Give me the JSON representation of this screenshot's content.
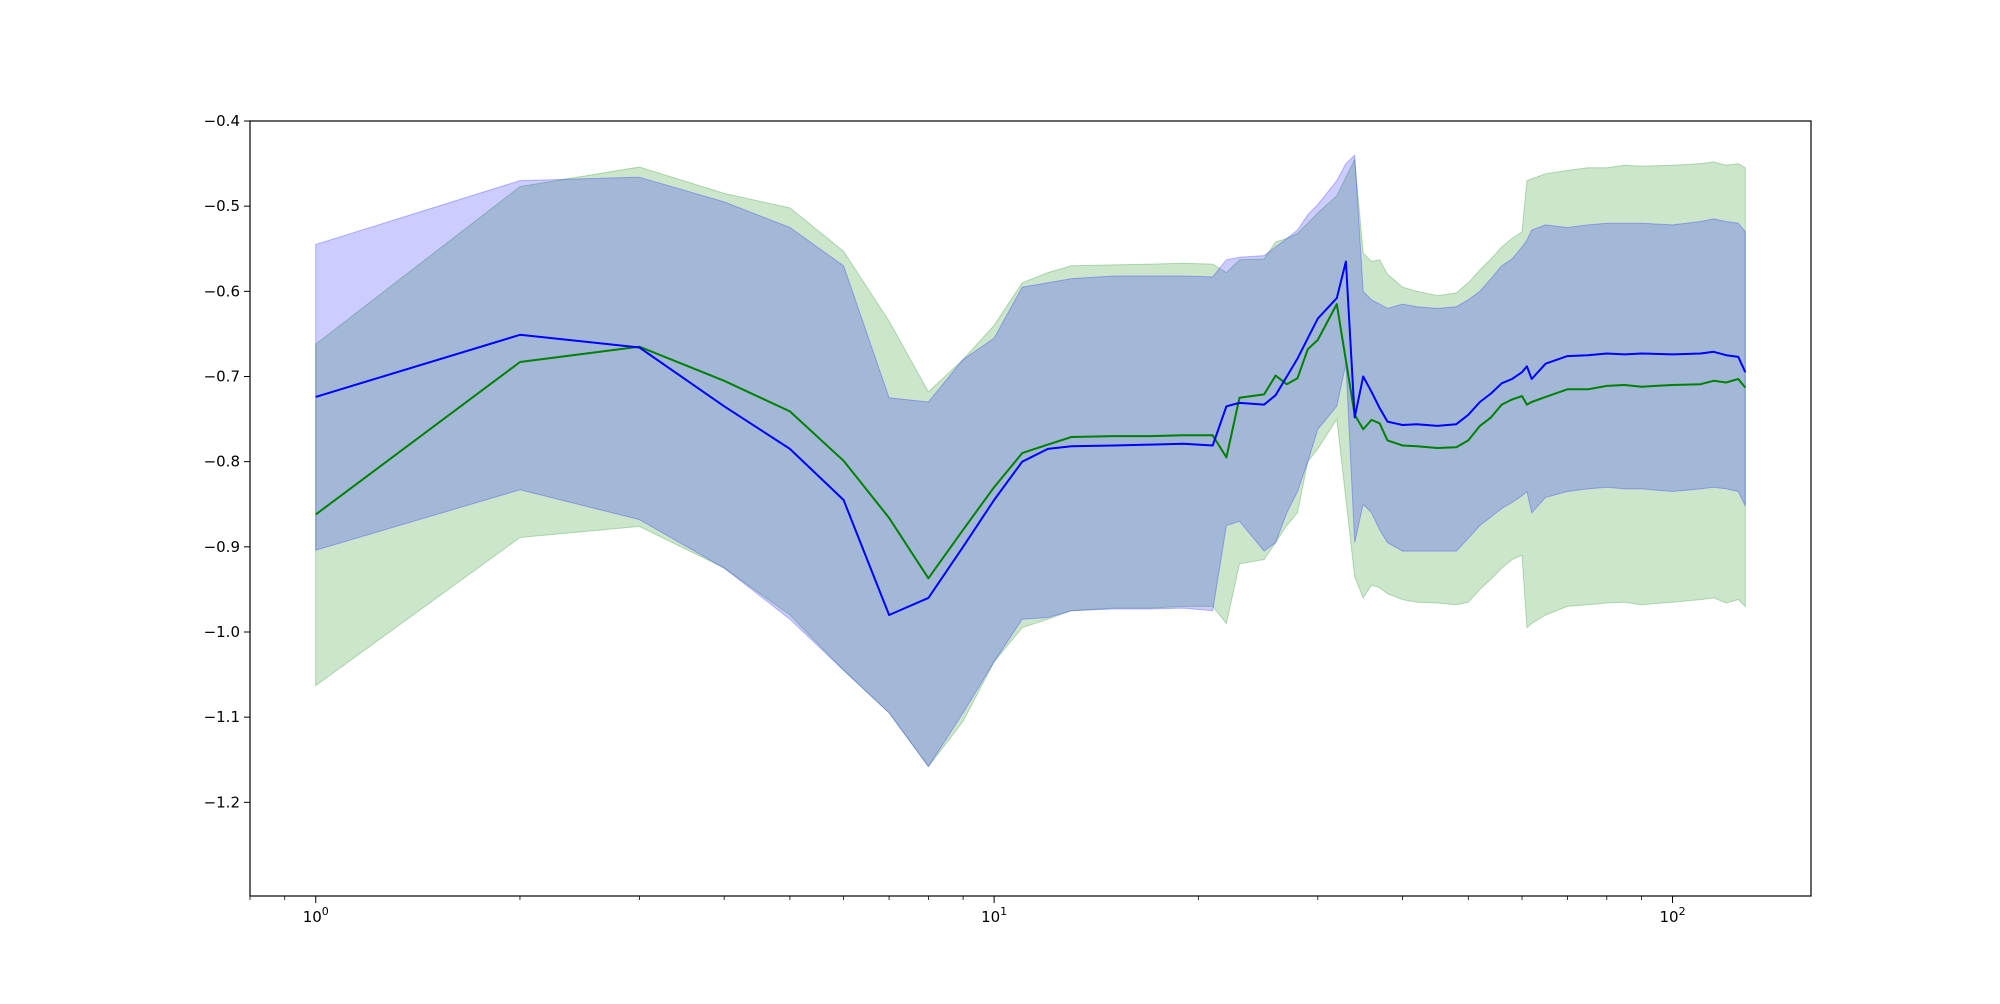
{
  "chart_data": {
    "type": "line",
    "title": "",
    "xlabel": "",
    "ylabel": "",
    "xscale": "log",
    "xlim": [
      0.8,
      160
    ],
    "ylim": [
      -1.31,
      -0.4
    ],
    "grid": false,
    "legend": "none",
    "yticks": [
      {
        "value": -0.4,
        "label": "−0.4"
      },
      {
        "value": -0.5,
        "label": "−0.5"
      },
      {
        "value": -0.6,
        "label": "−0.6"
      },
      {
        "value": -0.7,
        "label": "−0.7"
      },
      {
        "value": -0.8,
        "label": "−0.8"
      },
      {
        "value": -0.9,
        "label": "−0.9"
      },
      {
        "value": -1.0,
        "label": "−1.0"
      },
      {
        "value": -1.1,
        "label": "−1.1"
      },
      {
        "value": -1.2,
        "label": "−1.2"
      }
    ],
    "xticks": [
      {
        "value": 1,
        "base": "10",
        "exp": "0"
      },
      {
        "value": 10,
        "base": "10",
        "exp": "1"
      },
      {
        "value": 100,
        "base": "10",
        "exp": "2"
      }
    ],
    "series": [
      {
        "color": "#008000",
        "band_color": "#008000",
        "band_opacity": 0.2,
        "x": [
          1,
          2,
          3,
          4,
          5,
          6,
          7,
          8,
          9,
          10,
          11,
          12,
          13,
          15,
          17,
          19,
          21,
          22,
          23,
          25,
          26,
          27,
          28,
          29,
          30,
          32,
          34,
          35,
          36,
          37,
          38,
          40,
          42,
          45,
          48,
          50,
          52,
          54,
          56,
          58,
          60,
          61,
          62,
          65,
          70,
          75,
          80,
          85,
          90,
          100,
          110,
          115,
          120,
          125,
          128
        ],
        "mean": [
          -0.862,
          -0.683,
          -0.665,
          -0.705,
          -0.741,
          -0.799,
          -0.866,
          -0.937,
          -0.88,
          -0.83,
          -0.79,
          -0.78,
          -0.771,
          -0.77,
          -0.77,
          -0.769,
          -0.769,
          -0.795,
          -0.725,
          -0.721,
          -0.699,
          -0.709,
          -0.702,
          -0.668,
          -0.657,
          -0.615,
          -0.745,
          -0.762,
          -0.751,
          -0.755,
          -0.775,
          -0.781,
          -0.782,
          -0.784,
          -0.783,
          -0.775,
          -0.758,
          -0.748,
          -0.733,
          -0.727,
          -0.723,
          -0.733,
          -0.73,
          -0.724,
          -0.715,
          -0.715,
          -0.711,
          -0.71,
          -0.712,
          -0.71,
          -0.709,
          -0.705,
          -0.707,
          -0.703,
          -0.713
        ],
        "lower": [
          -1.063,
          -0.889,
          -0.876,
          -0.925,
          -0.98,
          -1.045,
          -1.095,
          -1.158,
          -1.105,
          -1.035,
          -0.995,
          -0.985,
          -0.975,
          -0.972,
          -0.972,
          -0.97,
          -0.97,
          -0.99,
          -0.92,
          -0.915,
          -0.895,
          -0.875,
          -0.86,
          -0.8,
          -0.785,
          -0.75,
          -0.935,
          -0.96,
          -0.945,
          -0.948,
          -0.955,
          -0.962,
          -0.965,
          -0.966,
          -0.968,
          -0.965,
          -0.95,
          -0.938,
          -0.925,
          -0.915,
          -0.91,
          -0.995,
          -0.99,
          -0.98,
          -0.97,
          -0.968,
          -0.966,
          -0.965,
          -0.968,
          -0.965,
          -0.962,
          -0.96,
          -0.966,
          -0.962,
          -0.97
        ],
        "upper": [
          -0.662,
          -0.477,
          -0.454,
          -0.485,
          -0.502,
          -0.553,
          -0.635,
          -0.718,
          -0.68,
          -0.64,
          -0.59,
          -0.578,
          -0.57,
          -0.569,
          -0.568,
          -0.567,
          -0.568,
          -0.578,
          -0.563,
          -0.562,
          -0.542,
          -0.538,
          -0.532,
          -0.52,
          -0.508,
          -0.488,
          -0.445,
          -0.555,
          -0.565,
          -0.563,
          -0.58,
          -0.595,
          -0.6,
          -0.605,
          -0.602,
          -0.59,
          -0.575,
          -0.562,
          -0.548,
          -0.538,
          -0.53,
          -0.47,
          -0.468,
          -0.462,
          -0.458,
          -0.455,
          -0.455,
          -0.452,
          -0.453,
          -0.452,
          -0.45,
          -0.448,
          -0.452,
          -0.45,
          -0.455
        ]
      },
      {
        "color": "#0000ff",
        "band_color": "#0000ff",
        "band_opacity": 0.2,
        "x": [
          1,
          2,
          3,
          4,
          5,
          6,
          7,
          8,
          9,
          10,
          11,
          12,
          13,
          15,
          17,
          19,
          21,
          22,
          23,
          25,
          26,
          27,
          28,
          29,
          30,
          32,
          33,
          34,
          35,
          36,
          37,
          38,
          40,
          42,
          45,
          48,
          50,
          52,
          54,
          56,
          58,
          60,
          61,
          62,
          65,
          70,
          75,
          80,
          85,
          90,
          100,
          110,
          115,
          120,
          125,
          128
        ],
        "mean": [
          -0.724,
          -0.651,
          -0.666,
          -0.735,
          -0.785,
          -0.845,
          -0.98,
          -0.96,
          -0.9,
          -0.845,
          -0.8,
          -0.785,
          -0.782,
          -0.781,
          -0.78,
          -0.779,
          -0.781,
          -0.735,
          -0.731,
          -0.733,
          -0.722,
          -0.7,
          -0.679,
          -0.655,
          -0.632,
          -0.608,
          -0.565,
          -0.748,
          -0.7,
          -0.718,
          -0.737,
          -0.753,
          -0.757,
          -0.756,
          -0.758,
          -0.756,
          -0.745,
          -0.73,
          -0.72,
          -0.708,
          -0.703,
          -0.695,
          -0.688,
          -0.703,
          -0.685,
          -0.676,
          -0.675,
          -0.673,
          -0.674,
          -0.673,
          -0.674,
          -0.673,
          -0.671,
          -0.675,
          -0.677,
          -0.695
        ],
        "lower": [
          -0.904,
          -0.833,
          -0.868,
          -0.925,
          -0.985,
          -1.045,
          -1.095,
          -1.158,
          -1.095,
          -1.035,
          -0.985,
          -0.983,
          -0.975,
          -0.973,
          -0.973,
          -0.972,
          -0.975,
          -0.875,
          -0.87,
          -0.905,
          -0.895,
          -0.86,
          -0.835,
          -0.8,
          -0.762,
          -0.735,
          -0.685,
          -0.895,
          -0.85,
          -0.86,
          -0.88,
          -0.895,
          -0.905,
          -0.905,
          -0.905,
          -0.905,
          -0.89,
          -0.875,
          -0.865,
          -0.855,
          -0.848,
          -0.84,
          -0.835,
          -0.86,
          -0.842,
          -0.835,
          -0.832,
          -0.83,
          -0.832,
          -0.832,
          -0.835,
          -0.832,
          -0.83,
          -0.832,
          -0.835,
          -0.852
        ],
        "upper": [
          -0.545,
          -0.47,
          -0.466,
          -0.495,
          -0.525,
          -0.57,
          -0.725,
          -0.73,
          -0.68,
          -0.655,
          -0.595,
          -0.59,
          -0.585,
          -0.582,
          -0.582,
          -0.582,
          -0.583,
          -0.563,
          -0.56,
          -0.558,
          -0.548,
          -0.538,
          -0.528,
          -0.51,
          -0.498,
          -0.47,
          -0.45,
          -0.44,
          -0.6,
          -0.61,
          -0.615,
          -0.62,
          -0.615,
          -0.618,
          -0.62,
          -0.618,
          -0.61,
          -0.6,
          -0.585,
          -0.57,
          -0.562,
          -0.548,
          -0.54,
          -0.528,
          -0.522,
          -0.525,
          -0.522,
          -0.52,
          -0.52,
          -0.52,
          -0.522,
          -0.518,
          -0.515,
          -0.518,
          -0.52,
          -0.53
        ]
      }
    ]
  }
}
